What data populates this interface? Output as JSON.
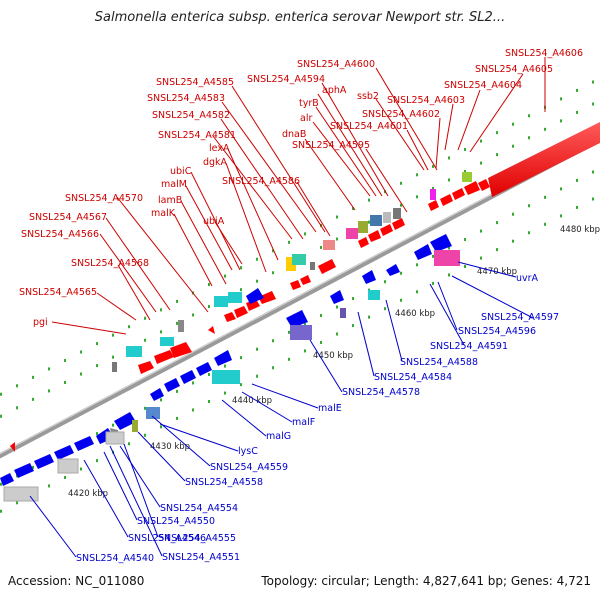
{
  "title": "Salmonella enterica subsp. enterica serovar Newport str. SL2...",
  "footer": {
    "accession": "Accession: NC_011080",
    "summary": "Topology: circular; Length: 4,827,641 bp; Genes: 4,721"
  },
  "colors": {
    "forward_label": "#cc0000",
    "reverse_label": "#0000cc",
    "forward_feature": "#ff0000",
    "reverse_feature": "#0000ee",
    "backbone": "#8c8c8c"
  },
  "kbp_ticks": [
    "4420 kbp",
    "4430 kbp",
    "4440 kbp",
    "4450 kbp",
    "4460 kbp",
    "4470 kbp",
    "4480 kbp"
  ],
  "forward_labels": [
    "SNSL254_A4606",
    "SNSL254_A4600",
    "SNSL254_A4605",
    "SNSL254_A4585",
    "SNSL254_A4594",
    "SNSL254_A4604",
    "SNSL254_A4583",
    "aphA",
    "ssb2",
    "SNSL254_A4603",
    "SNSL254_A4582",
    "tyrB",
    "SNSL254_A4602",
    "alr",
    "SNSL254_A4601",
    "SNSL254_A4581",
    "dnaB",
    "SNSL254_A4595",
    "lexA",
    "dgkA",
    "ubiC",
    "SNSL254_A4586",
    "malM",
    "SNSL254_A4570",
    "lamB",
    "malK",
    "ubiA",
    "SNSL254_A4567",
    "SNSL254_A4566",
    "SNSL254_A4568",
    "SNSL254_A4565",
    "pgi"
  ],
  "reverse_labels": [
    "uvrA",
    "SNSL254_A4597",
    "SNSL254_A4596",
    "SNSL254_A4591",
    "SNSL254_A4588",
    "SNSL254_A4584",
    "SNSL254_A4578",
    "malE",
    "malF",
    "malG",
    "lysC",
    "SNSL254_A4559",
    "SNSL254_A4558",
    "SNSL254_A4554",
    "SNSL254_A4550",
    "SNSL254_A4546",
    "SNSL254_A4555",
    "SNSL254_A4551",
    "SNSL254_A4540"
  ]
}
